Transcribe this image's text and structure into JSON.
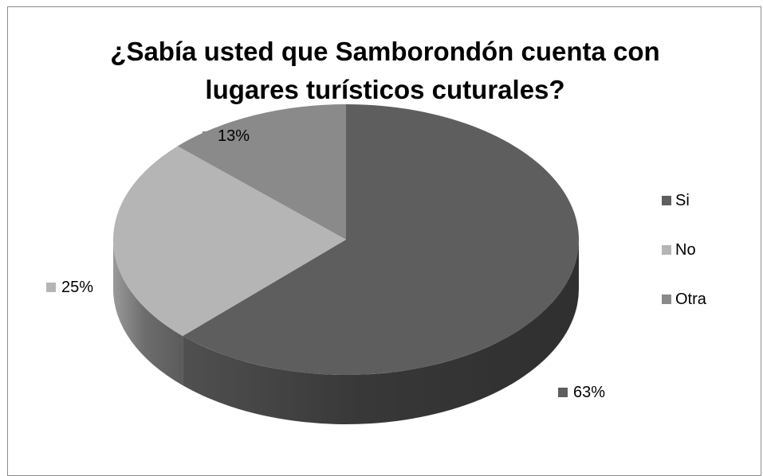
{
  "chart_data": {
    "type": "pie",
    "title_lines": [
      "¿Sabía usted que Samborondón cuenta con",
      "lugares turísticos cuturales?"
    ],
    "categories": [
      "Si",
      "No",
      "Otra"
    ],
    "values": [
      63,
      25,
      13
    ],
    "data_labels": [
      "63%",
      "25%",
      "13%"
    ],
    "colors": [
      "#5e5e5e",
      "#b5b5b5",
      "#8a8a8a"
    ],
    "style": "3d",
    "legend_position": "right"
  }
}
